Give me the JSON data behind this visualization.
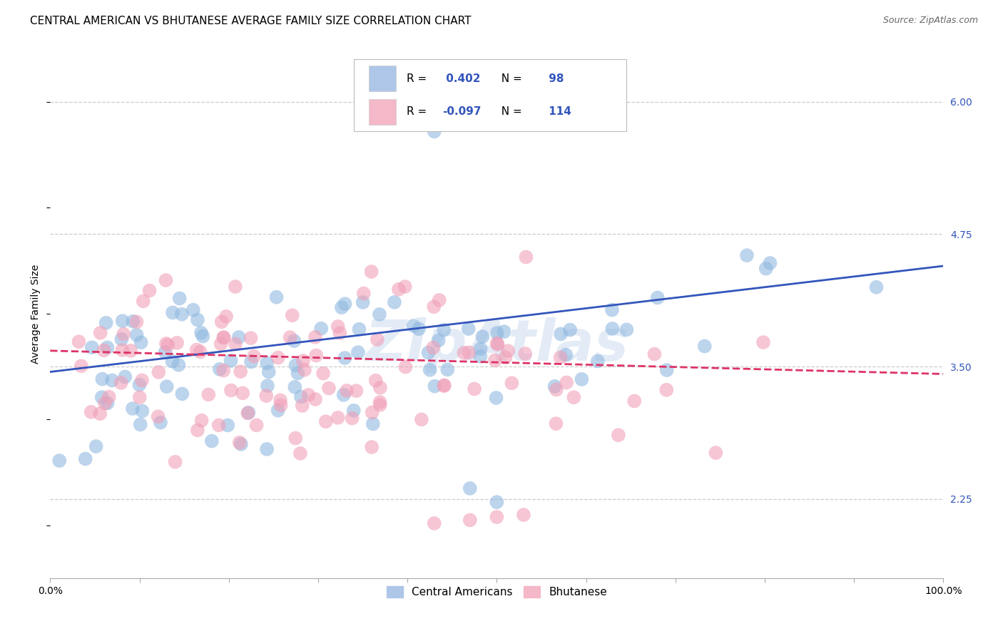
{
  "title": "CENTRAL AMERICAN VS BHUTANESE AVERAGE FAMILY SIZE CORRELATION CHART",
  "source": "Source: ZipAtlas.com",
  "ylabel": "Average Family Size",
  "yticks_right": [
    2.25,
    3.5,
    4.75,
    6.0
  ],
  "ytick_labels_right": [
    "2.25",
    "3.50",
    "4.75",
    "6.00"
  ],
  "legend_label_ca": "Central Americans",
  "legend_label_bh": "Bhutanese",
  "blue_color": "#90b8e0",
  "pink_color": "#f0a0b8",
  "blue_line_color": "#3355bb",
  "pink_line_color": "#dd3366",
  "background_color": "#ffffff",
  "grid_color": "#cccccc",
  "r_blue": 0.402,
  "n_blue": 98,
  "r_pink": -0.097,
  "n_pink": 114,
  "title_fontsize": 11,
  "source_fontsize": 9,
  "axis_label_fontsize": 10,
  "tick_fontsize": 10,
  "legend_fontsize": 11,
  "watermark": "ZipAtlas",
  "ymin": 1.5,
  "ymax": 6.5,
  "xmin": 0.0,
  "xmax": 1.0
}
